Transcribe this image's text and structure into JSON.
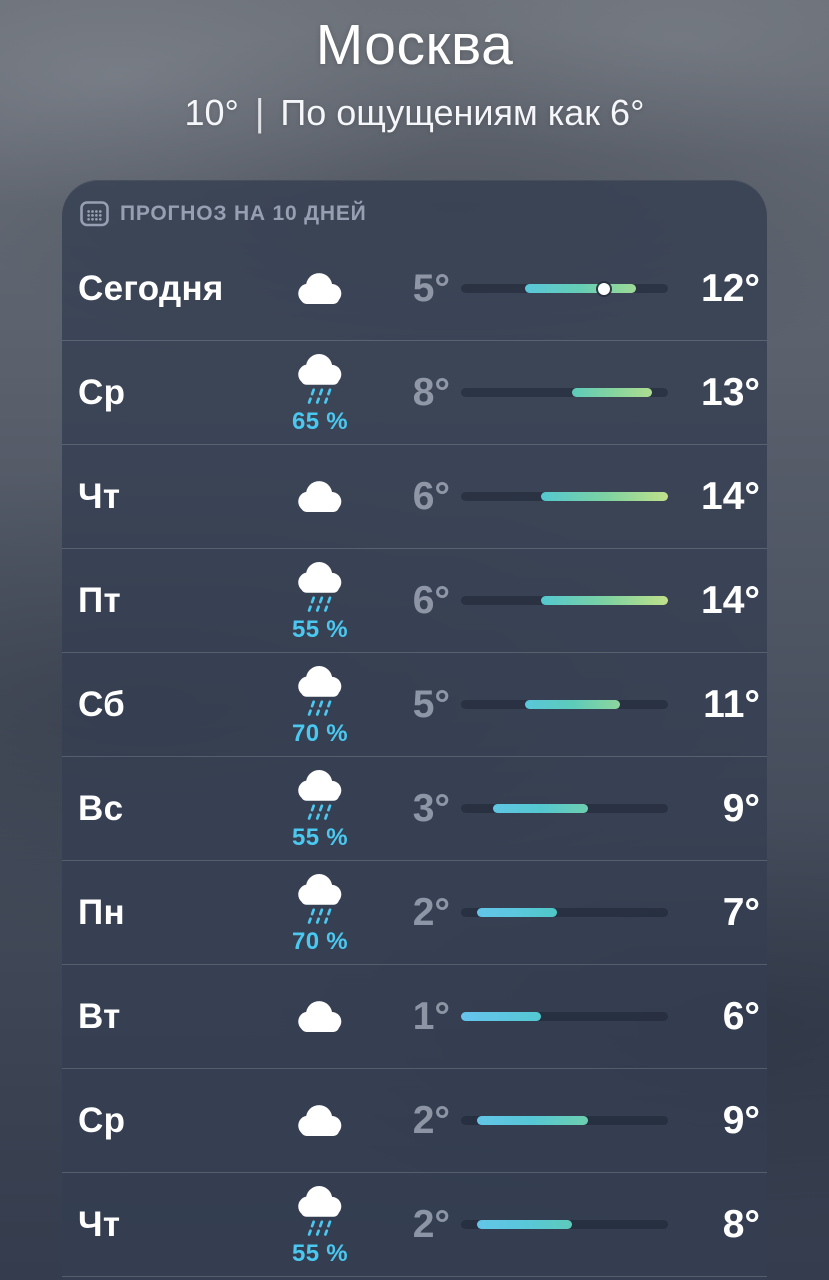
{
  "location": {
    "city": "Москва",
    "current_temp": "10°",
    "separator": "|",
    "feels_like": "По ощущениям как 6°"
  },
  "forecast": {
    "title": "ПРОГНОЗ НА 10 ДНЕЙ",
    "header_icon": "calendar-icon",
    "colors": {
      "precip_accent": "#4ac8f0",
      "bar_gradient_stops": [
        {
          "t": 1,
          "c": "#66c4ee"
        },
        {
          "t": 5,
          "c": "#59c7da"
        },
        {
          "t": 7,
          "c": "#4ec8c6"
        },
        {
          "t": 10,
          "c": "#7cd2a2"
        },
        {
          "t": 14,
          "c": "#bfe18a"
        }
      ]
    },
    "temp_scale": {
      "min": 1,
      "max": 14
    },
    "rows": [
      {
        "day": "Сегодня",
        "condition": "cloudy",
        "pop": null,
        "low": 5,
        "high": 12,
        "low_label": "5°",
        "high_label": "12°",
        "current": 10
      },
      {
        "day": "Ср",
        "condition": "rain",
        "pop": "65 %",
        "low": 8,
        "high": 13,
        "low_label": "8°",
        "high_label": "13°",
        "current": null
      },
      {
        "day": "Чт",
        "condition": "cloudy",
        "pop": null,
        "low": 6,
        "high": 14,
        "low_label": "6°",
        "high_label": "14°",
        "current": null
      },
      {
        "day": "Пт",
        "condition": "rain",
        "pop": "55 %",
        "low": 6,
        "high": 14,
        "low_label": "6°",
        "high_label": "14°",
        "current": null
      },
      {
        "day": "Сб",
        "condition": "rain",
        "pop": "70 %",
        "low": 5,
        "high": 11,
        "low_label": "5°",
        "high_label": "11°",
        "current": null
      },
      {
        "day": "Вс",
        "condition": "rain",
        "pop": "55 %",
        "low": 3,
        "high": 9,
        "low_label": "3°",
        "high_label": "9°",
        "current": null
      },
      {
        "day": "Пн",
        "condition": "rain",
        "pop": "70 %",
        "low": 2,
        "high": 7,
        "low_label": "2°",
        "high_label": "7°",
        "current": null
      },
      {
        "day": "Вт",
        "condition": "cloudy",
        "pop": null,
        "low": 1,
        "high": 6,
        "low_label": "1°",
        "high_label": "6°",
        "current": null
      },
      {
        "day": "Ср",
        "condition": "cloudy",
        "pop": null,
        "low": 2,
        "high": 9,
        "low_label": "2°",
        "high_label": "9°",
        "current": null
      },
      {
        "day": "Чт",
        "condition": "rain",
        "pop": "55 %",
        "low": 2,
        "high": 8,
        "low_label": "2°",
        "high_label": "8°",
        "current": null
      }
    ]
  }
}
